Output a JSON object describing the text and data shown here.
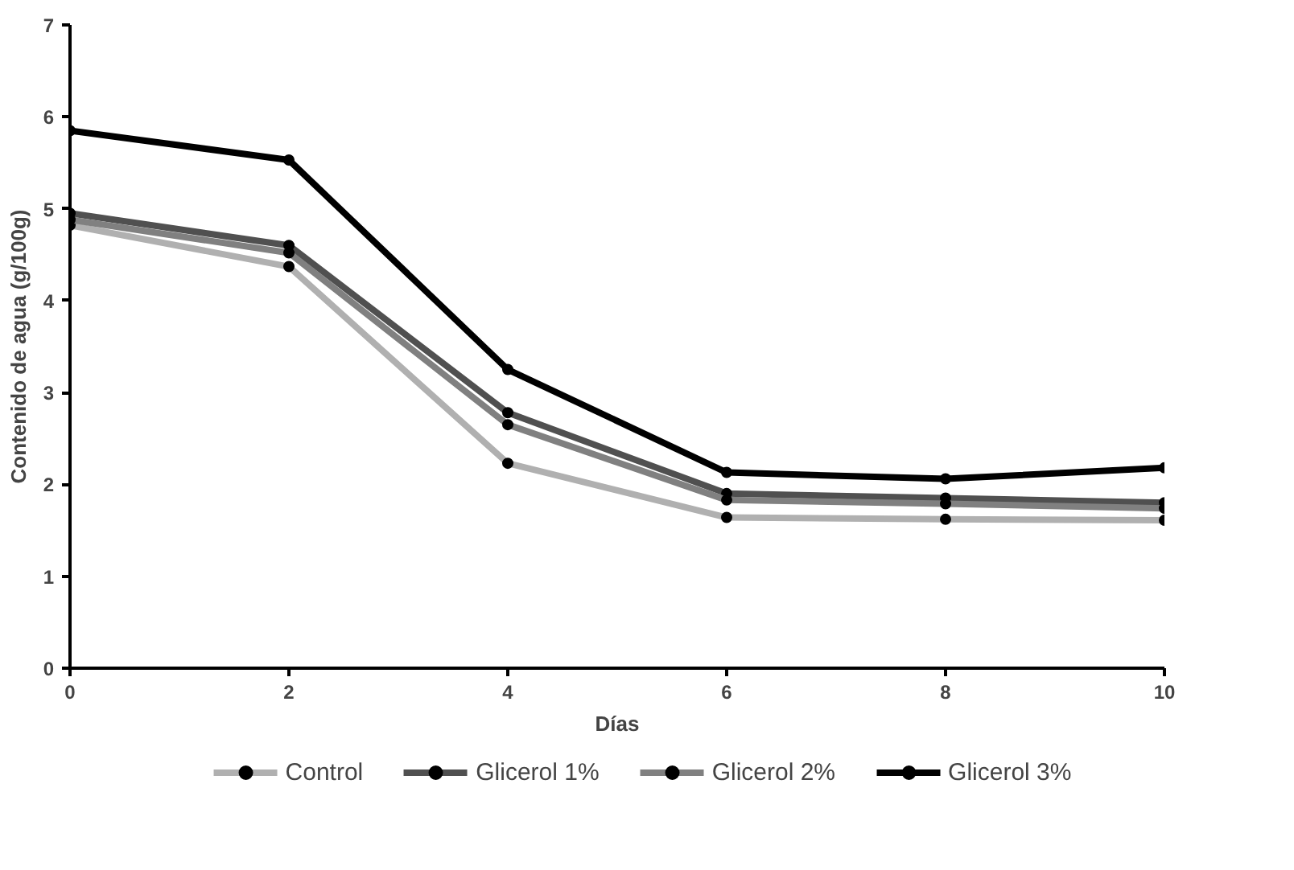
{
  "chart_data": {
    "type": "line",
    "xlabel": "Días",
    "ylabel": "Contenido de agua (g/100g)",
    "x": [
      0,
      2,
      4,
      6,
      8,
      10
    ],
    "xlim": [
      0,
      10
    ],
    "xticks": [
      0,
      2,
      4,
      6,
      8,
      10
    ],
    "ylim": [
      0,
      7
    ],
    "yticks": [
      0,
      1,
      2,
      3,
      4,
      5,
      6,
      7
    ],
    "grid": false,
    "legend": "bottom",
    "marker": "circle",
    "line_style": "solid",
    "series": [
      {
        "name": "Control",
        "color": "#b0b0b0",
        "values": [
          4.82,
          4.37,
          2.23,
          1.64,
          1.62,
          1.61
        ]
      },
      {
        "name": "Glicerol 1%",
        "color": "#505050",
        "values": [
          4.95,
          4.6,
          2.78,
          1.9,
          1.85,
          1.8
        ]
      },
      {
        "name": "Glicerol 2%",
        "color": "#808080",
        "values": [
          4.88,
          4.52,
          2.65,
          1.83,
          1.79,
          1.74
        ]
      },
      {
        "name": "Glicerol 3%",
        "color": "#000000",
        "values": [
          5.85,
          5.53,
          3.25,
          2.13,
          2.06,
          2.18
        ]
      }
    ]
  }
}
